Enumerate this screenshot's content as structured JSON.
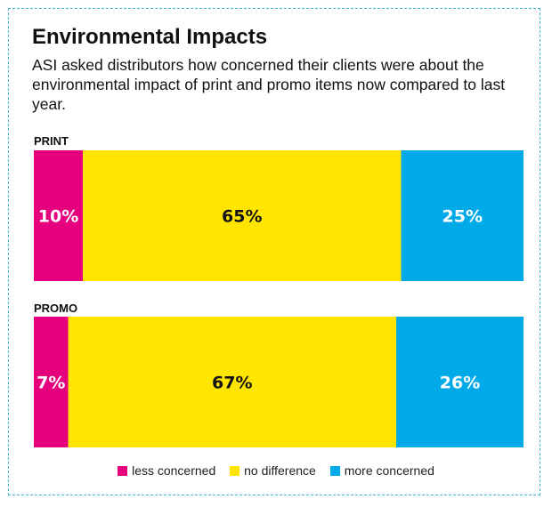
{
  "title": "Environmental Impacts",
  "subtitle": "ASI asked distributors how concerned their clients were about the environmental impact of print and promo items now compared to last year.",
  "colors": {
    "less_concerned": "#e6007e",
    "no_difference": "#ffe500",
    "more_concerned": "#00a9e8",
    "frame": "#3fb6e0"
  },
  "chart_data": {
    "type": "bar",
    "orientation": "horizontal-stacked-100",
    "categories": [
      "PRINT",
      "PROMO"
    ],
    "series": [
      {
        "name": "less concerned",
        "values": [
          10,
          7
        ],
        "labels": [
          "10%",
          "7%"
        ]
      },
      {
        "name": "no difference",
        "values": [
          65,
          67
        ],
        "labels": [
          "65%",
          "67%"
        ]
      },
      {
        "name": "more concerned",
        "values": [
          25,
          26
        ],
        "labels": [
          "25%",
          "26%"
        ]
      }
    ],
    "legend_position": "bottom-center"
  }
}
